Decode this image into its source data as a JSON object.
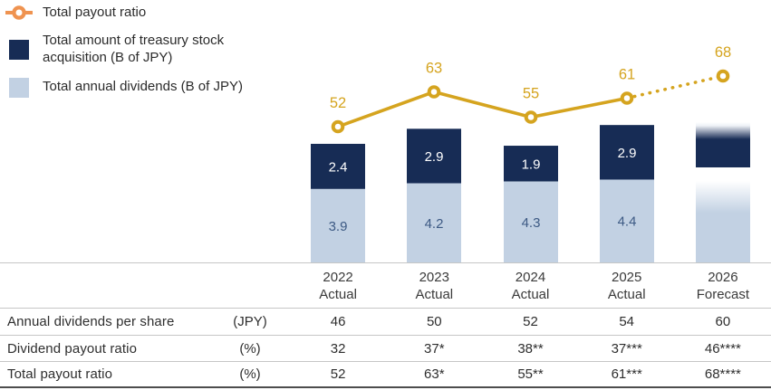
{
  "legend": {
    "items": [
      {
        "label": "Total payout ratio",
        "marker": "line-ring-icon",
        "color": "#EF9350"
      },
      {
        "label": "Total amount of treasury stock acquisition (B of JPY)",
        "marker": "square",
        "color": "#172C55"
      },
      {
        "label": "Total annual dividends (B of JPY)",
        "marker": "square",
        "color": "#C2D1E3"
      }
    ]
  },
  "chart_data": {
    "type": "composite: stacked bar + line",
    "categories": [
      "2022 Actual",
      "2023 Actual",
      "2024 Actual",
      "2025 Actual",
      "2026 Forecast"
    ],
    "series": [
      {
        "name": "Total annual dividends (B of JPY)",
        "type": "bar",
        "stack_position": "bottom",
        "color": "#C2D1E3",
        "values": [
          3.9,
          4.2,
          4.3,
          4.4,
          null
        ]
      },
      {
        "name": "Total amount of treasury stock acquisition (B of JPY)",
        "type": "bar",
        "stack_position": "top",
        "color": "#172C55",
        "values": [
          2.4,
          2.9,
          1.9,
          2.9,
          null
        ]
      },
      {
        "name": "Total payout ratio",
        "type": "line",
        "unit": "%",
        "color": "#D5A41F",
        "values": [
          52,
          63,
          55,
          61,
          68
        ],
        "dotted_segment": "2025 Actual to 2026 Forecast"
      }
    ],
    "title": "",
    "xlabel": "",
    "ylabel": "",
    "legend_position": "top-left",
    "grid": false,
    "notes": "2026 Forecast stacked bar is drawn as an unlabeled gradient (values fade to white); forecast portion of the line is dotted"
  },
  "table": {
    "columns": [
      {
        "year": "2022",
        "status": "Actual"
      },
      {
        "year": "2023",
        "status": "Actual"
      },
      {
        "year": "2024",
        "status": "Actual"
      },
      {
        "year": "2025",
        "status": "Actual"
      },
      {
        "year": "2026",
        "status": "Forecast"
      }
    ],
    "rows": [
      {
        "label": "Annual dividends per share",
        "unit": "(JPY)",
        "values": [
          "46",
          "50",
          "52",
          "54",
          "60"
        ]
      },
      {
        "label": "Dividend payout ratio",
        "unit": "(%)",
        "values": [
          "32",
          "37*",
          "38**",
          "37***",
          "46****"
        ]
      },
      {
        "label": "Total payout ratio",
        "unit": "(%)",
        "values": [
          "52",
          "63*",
          "55**",
          "61***",
          "68****"
        ]
      }
    ]
  },
  "colors": {
    "gold": "#D5A41F",
    "legend_orange": "#EF9350",
    "navy": "#172C55",
    "light_blue": "#C2D1E3",
    "bar_light_text": "#3D5A84",
    "white": "#ffffff"
  }
}
